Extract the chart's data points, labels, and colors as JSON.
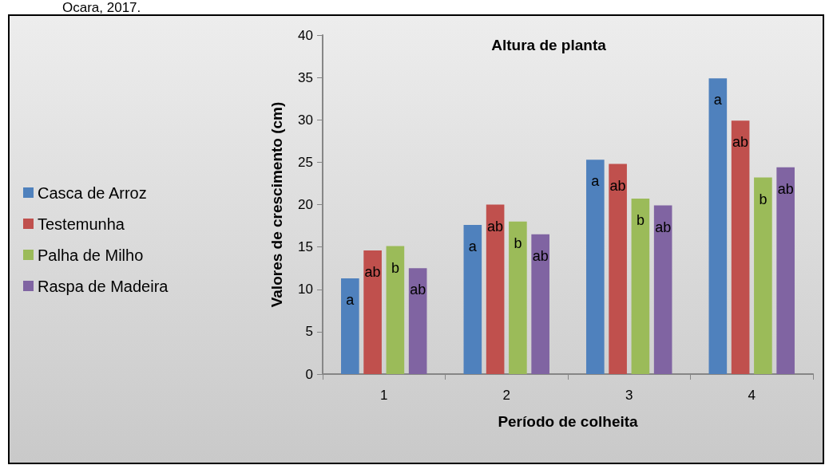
{
  "chart_data": {
    "type": "bar",
    "title": "Altura de planta",
    "xlabel": "Período de colheita",
    "ylabel": "Valores de crescimento (cm)",
    "annotations": [
      "Ocara, 2017."
    ],
    "categories": [
      "1",
      "2",
      "3",
      "4"
    ],
    "series": [
      {
        "name": "Casca de Arroz",
        "color": "#4f81bd",
        "values": [
          11.3,
          17.6,
          25.3,
          34.9
        ],
        "value_labels": [
          "a",
          "a",
          "a",
          "a"
        ]
      },
      {
        "name": "Testemunha",
        "color": "#c0504d",
        "values": [
          14.6,
          20.0,
          24.8,
          29.9
        ],
        "value_labels": [
          "ab",
          "ab",
          "ab",
          "ab"
        ]
      },
      {
        "name": "Palha de Milho",
        "color": "#9bbb59",
        "values": [
          15.1,
          18.0,
          20.7,
          23.2
        ],
        "value_labels": [
          "b",
          "b",
          "b",
          "b"
        ]
      },
      {
        "name": "Raspa de Madeira",
        "color": "#8064a2",
        "values": [
          12.5,
          16.5,
          19.9,
          24.4
        ],
        "value_labels": [
          "ab",
          "ab",
          "ab",
          "ab"
        ]
      }
    ],
    "ylim": [
      0,
      40
    ],
    "yticks": [
      0,
      5,
      10,
      15,
      20,
      25,
      30,
      35,
      40
    ],
    "grid": false,
    "legend": "left"
  }
}
